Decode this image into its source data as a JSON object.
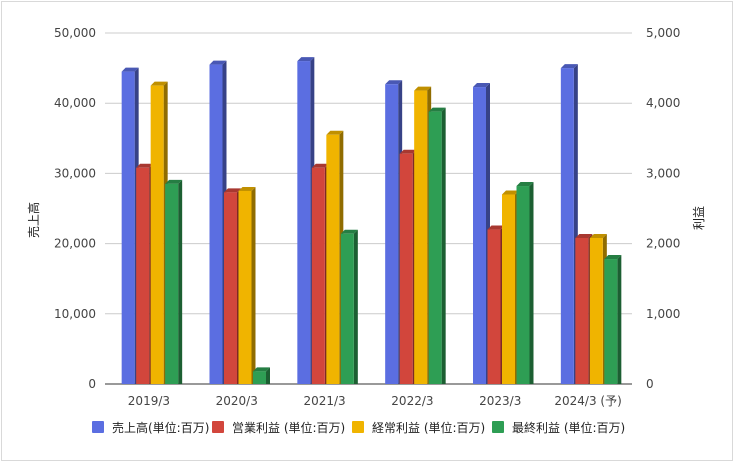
{
  "chart_data": {
    "type": "bar",
    "categories": [
      "2019/3",
      "2020/3",
      "2021/3",
      "2022/3",
      "2023/3",
      "2024/3 (予)"
    ],
    "y_left": {
      "label": "売上高",
      "ylim": [
        0,
        50000
      ],
      "ticks": [
        "0",
        "10,000",
        "20,000",
        "30,000",
        "40,000",
        "50,000"
      ]
    },
    "y_right": {
      "label": "利益",
      "ylim": [
        0,
        5000
      ],
      "ticks": [
        "0",
        "1,000",
        "2,000",
        "3,000",
        "4,000",
        "5,000"
      ]
    },
    "series": [
      {
        "name": "売上高(単位:百万)",
        "axis": "left",
        "color": "#5b6ee1",
        "values": [
          44500,
          45500,
          46000,
          42700,
          42300,
          45000
        ]
      },
      {
        "name": "営業利益 (単位:百万)",
        "axis": "right",
        "color": "#d2463c",
        "values": [
          3080,
          2730,
          3080,
          3280,
          2200,
          2080
        ]
      },
      {
        "name": "経常利益 (単位:百万)",
        "axis": "right",
        "color": "#f0b400",
        "values": [
          4250,
          2750,
          3550,
          4180,
          2700,
          2080
        ]
      },
      {
        "name": "最終利益 (単位:百万)",
        "axis": "right",
        "color": "#2e9e54",
        "values": [
          2850,
          180,
          2140,
          3880,
          2820,
          1780
        ]
      }
    ],
    "grid": true,
    "legend": "bottom"
  }
}
